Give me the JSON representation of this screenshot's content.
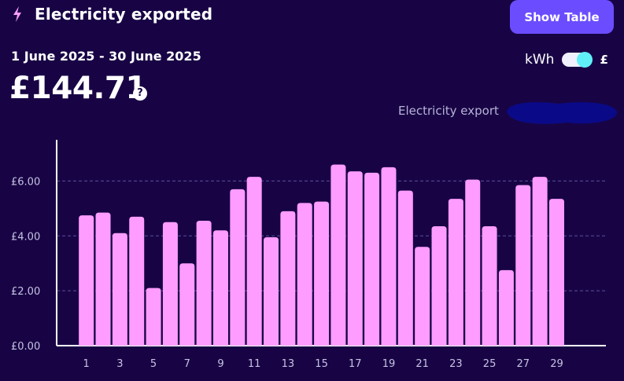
{
  "header": {
    "title": "Electricity exported",
    "icon": "lightning-bolt-icon",
    "show_table_label": "Show Table"
  },
  "summary": {
    "date_range": "1 June 2025 - 30 June 2025",
    "total": "£144.71",
    "help_label": "?"
  },
  "unit_toggle": {
    "left_label": "kWh",
    "right_label": "£",
    "selected": "£"
  },
  "colors": {
    "background": "#180445",
    "bar": "#ff9cff",
    "accent_button": "#6b4dff",
    "toggle_knob": "#60f0f8",
    "legend_swatch": "#0a0a88"
  },
  "chart_data": {
    "type": "bar",
    "title": "",
    "xlabel": "",
    "ylabel": "",
    "legend": [
      {
        "name": "Electricity export",
        "color": "#0a0a88",
        "placement": "top-right"
      }
    ],
    "ylim": [
      0,
      7.5
    ],
    "yticks": [
      0,
      2,
      4,
      6
    ],
    "ytick_labels": [
      "£0.00",
      "£2.00",
      "£4.00",
      "£6.00"
    ],
    "grid": true,
    "categories": [
      1,
      2,
      3,
      4,
      5,
      6,
      7,
      8,
      9,
      10,
      11,
      12,
      13,
      14,
      15,
      16,
      17,
      18,
      19,
      20,
      21,
      22,
      23,
      24,
      25,
      26,
      27,
      28,
      29
    ],
    "xtick_labels": [
      "1",
      "3",
      "5",
      "7",
      "9",
      "11",
      "13",
      "15",
      "17",
      "19",
      "21",
      "23",
      "25",
      "27",
      "29"
    ],
    "values": [
      4.75,
      4.85,
      4.1,
      4.7,
      2.1,
      4.5,
      3.0,
      4.55,
      4.2,
      5.7,
      6.15,
      3.95,
      4.9,
      5.2,
      5.25,
      6.6,
      6.35,
      6.3,
      6.5,
      5.65,
      3.6,
      4.35,
      5.35,
      6.05,
      4.35,
      2.75,
      5.85,
      6.15,
      5.35
    ]
  }
}
